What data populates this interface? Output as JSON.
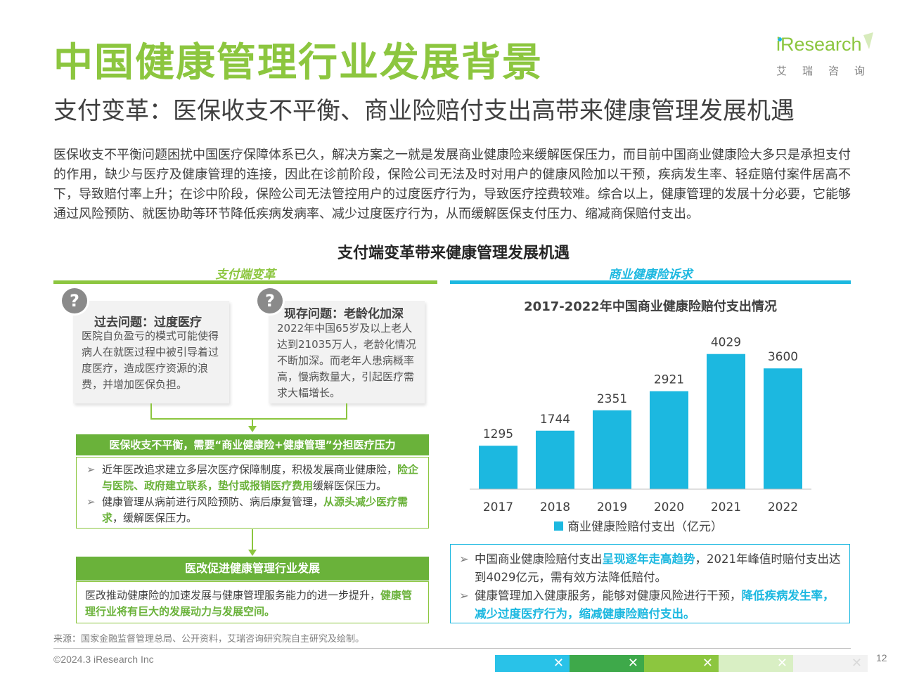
{
  "header": {
    "title": "中国健康管理行业发展背景",
    "subtitle": "支付变革：医保收支不平衡、商业险赔付支出高带来健康管理发展机遇"
  },
  "logo": {
    "word": "iResearch",
    "cn": "艾瑞咨询"
  },
  "intro": "医保收支不平衡问题困扰中国医疗保障体系已久，解决方案之一就是发展商业健康险来缓解医保压力，而目前中国商业健康险大多只是承担支付的作用，缺少与医疗及健康管理的连接，因此在诊前阶段，保险公司无法及时对用户的健康风险加以干预，疾病发生率、轻症赔付案件居高不下，导致赔付率上升；在诊中阶段，保险公司无法管控用户的过度医疗行为，导致医疗控费较难。综合以上，健康管理的发展十分必要，它能够通过风险预防、就医协助等环节降低疾病发病率、减少过度医疗行为，从而缓解医保支付压力、缩减商保赔付支出。",
  "diagram": {
    "title": "支付端变革带来健康管理发展机遇",
    "left_label": "支付端变革",
    "right_label": "商业健康险诉求",
    "q_icon": "?",
    "problem1": {
      "title": "过去问题：过度医疗",
      "text": "医院自负盈亏的模式可能使得病人在就医过程中被引导着过度医疗，造成医疗资源的浪费，并增加医保负担。"
    },
    "problem2": {
      "title": "现存问题：老龄化加深",
      "text": "2022年中国65岁及以上老人达到21035万人，老龄化情况不断加深。而老年人患病概率高，慢病数量大，引起医疗需求大幅增长。"
    },
    "box1": {
      "header": "医保收支不平衡，需要“商业健康险+健康管理”分担医疗压力",
      "b1_pre": "近年医改追求建立多层次医疗保障制度，积极发展商业健康险，",
      "b1_hl": "险企与医院、政府建立联系，垫付或报销医疗费用",
      "b1_post": "缓解医保压力。",
      "b2_pre": "健康管理从病前进行风险预防、病后康复管理，",
      "b2_hl": "从源头减少医疗需求",
      "b2_post": "，缓解医保压力。"
    },
    "box2": {
      "header": "医改促进健康管理行业发展",
      "text_pre": "医改推动健康险的加速发展与健康管理服务能力的进一步提升，",
      "text_hl": "健康管理行业将有巨大的发展动力与发展空间。"
    },
    "right_box": {
      "b1_pre": "中国商业健康险赔付支出",
      "b1_hl": "呈现逐年走高趋势",
      "b1_post": "，2021年峰值时赔付支出达到4029亿元，需有效方法降低赔付。",
      "b2_pre": "健康管理加入健康服务，能够对健康风险进行干预，",
      "b2_hl": "降低疾病发生率，减少过度医疗行为，缩减健康险赔付支出。"
    }
  },
  "chart_data": {
    "type": "bar",
    "title": "2017-2022年中国商业健康险赔付支出情况",
    "categories": [
      "2017",
      "2018",
      "2019",
      "2020",
      "2021",
      "2022"
    ],
    "series": [
      {
        "name": "商业健康险赔付支出（亿元）",
        "values": [
          1295,
          1744,
          2351,
          2921,
          4029,
          3600
        ]
      }
    ],
    "legend_position": "bottom",
    "color": "#1cb8e0",
    "grid": false
  },
  "footer": {
    "source": "来源：国家金融监督管理总局、公开资料，艾瑞咨询研究院自主研究及绘制。",
    "copyright": "©2024.3 iResearch Inc",
    "page": "12",
    "bar_colors": [
      "#29c2e8",
      "#3ea94a",
      "#8cc63f",
      "#d9efc4",
      "#f2f2f2"
    ],
    "bar_mark": "✕"
  },
  "colors": {
    "accent_green": "#8cc63f",
    "dark_green": "#6ab23a",
    "accent_blue": "#1cb8e0"
  }
}
